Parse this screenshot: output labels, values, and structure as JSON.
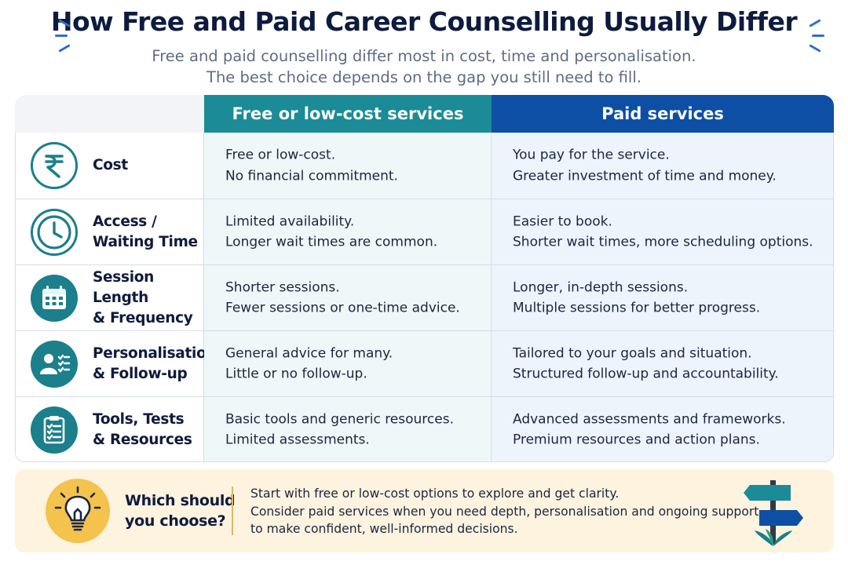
{
  "title": "How Free and Paid Career Counselling Usually Differ",
  "subtitle": {
    "line1": "Free and paid counselling differ most in cost, time and personalisation.",
    "line2": "The best choice depends on the gap you still need to fill."
  },
  "columns": {
    "free": "Free or low-cost services",
    "paid": "Paid services"
  },
  "rows": [
    {
      "icon": "rupee-icon",
      "label": [
        "Cost"
      ],
      "free": [
        "Free or low-cost.",
        "No financial commitment."
      ],
      "paid": [
        "You pay for the service.",
        "Greater investment of time and money."
      ]
    },
    {
      "icon": "clock-icon",
      "label": [
        "Access /",
        "Waiting Time"
      ],
      "free": [
        "Limited availability.",
        "Longer wait times are common."
      ],
      "paid": [
        "Easier to book.",
        "Shorter wait times, more scheduling options."
      ]
    },
    {
      "icon": "calendar-icon",
      "label": [
        "Session Length",
        "& Frequency"
      ],
      "free": [
        "Shorter sessions.",
        "Fewer sessions or one-time advice."
      ],
      "paid": [
        "Longer, in-depth sessions.",
        "Multiple sessions for better progress."
      ]
    },
    {
      "icon": "person-checklist-icon",
      "label": [
        "Personalisation",
        "& Follow-up"
      ],
      "free": [
        "General advice for many.",
        "Little or no follow-up."
      ],
      "paid": [
        "Tailored to your goals and situation.",
        "Structured follow-up and accountability."
      ]
    },
    {
      "icon": "clipboard-icon",
      "label": [
        "Tools, Tests",
        "& Resources"
      ],
      "free": [
        "Basic tools and generic resources.",
        "Limited assessments."
      ],
      "paid": [
        "Advanced assessments and frameworks.",
        "Premium resources and action plans."
      ]
    }
  ],
  "recommendation": {
    "icon": "lightbulb-icon",
    "question": [
      "Which should",
      "you choose?"
    ],
    "answer": [
      "Start with free or low-cost options to explore and get clarity.",
      "Consider paid services when you need depth, personalisation and ongoing support",
      "to make confident, well-informed decisions."
    ],
    "illustration": "signpost-icon"
  },
  "colors": {
    "free_header": "#1b8b97",
    "paid_header": "#0d4fa5",
    "icon_teal": "#1b7f8c",
    "panel_bg": "#fdf3df",
    "bulb_circle": "#f4c34d"
  }
}
